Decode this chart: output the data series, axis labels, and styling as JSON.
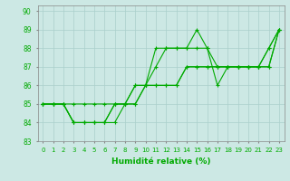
{
  "xlabel": "Humidité relative (%)",
  "background_color": "#cce8e4",
  "grid_color": "#aacfcb",
  "line_color": "#00aa00",
  "xlim": [
    -0.5,
    23.5
  ],
  "ylim": [
    83,
    90.3
  ],
  "yticks": [
    83,
    84,
    85,
    86,
    87,
    88,
    89,
    90
  ],
  "xticks": [
    0,
    1,
    2,
    3,
    4,
    5,
    6,
    7,
    8,
    9,
    10,
    11,
    12,
    13,
    14,
    15,
    16,
    17,
    18,
    19,
    20,
    21,
    22,
    23
  ],
  "series": [
    [
      85,
      85,
      85,
      85,
      85,
      85,
      85,
      85,
      85,
      85,
      86,
      86,
      86,
      86,
      87,
      87,
      87,
      87,
      87,
      87,
      87,
      87,
      87,
      89
    ],
    [
      85,
      85,
      85,
      84,
      84,
      84,
      84,
      84,
      85,
      85,
      86,
      86,
      86,
      86,
      87,
      87,
      87,
      87,
      87,
      87,
      87,
      87,
      87,
      89
    ],
    [
      85,
      85,
      85,
      84,
      84,
      84,
      84,
      85,
      85,
      86,
      86,
      87,
      88,
      88,
      88,
      88,
      88,
      87,
      87,
      87,
      87,
      87,
      88,
      89
    ],
    [
      85,
      85,
      85,
      84,
      84,
      84,
      84,
      85,
      85,
      86,
      86,
      88,
      88,
      88,
      88,
      89,
      88,
      86,
      87,
      87,
      87,
      87,
      88,
      89
    ]
  ]
}
